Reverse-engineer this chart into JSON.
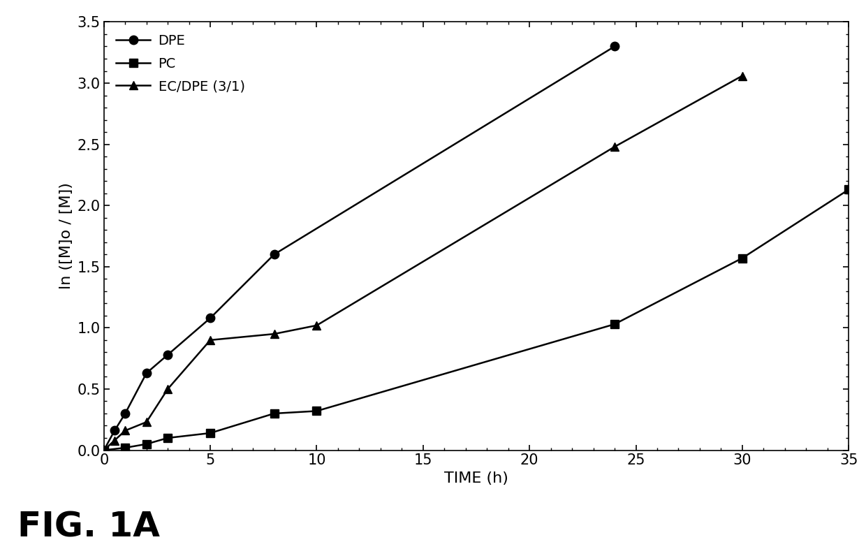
{
  "xlabel": "TIME (h)",
  "ylabel": "ln ([M]o / [M])",
  "xlim": [
    0,
    35
  ],
  "ylim": [
    0,
    3.5
  ],
  "xticks": [
    0,
    5,
    10,
    15,
    20,
    25,
    30,
    35
  ],
  "yticks": [
    0,
    0.5,
    1.0,
    1.5,
    2.0,
    2.5,
    3.0,
    3.5
  ],
  "series": [
    {
      "label": "DPE",
      "x": [
        0,
        0.5,
        1.0,
        2.0,
        3.0,
        5.0,
        8.0,
        24.0
      ],
      "y": [
        0.0,
        0.16,
        0.3,
        0.63,
        0.78,
        1.08,
        1.6,
        3.3
      ],
      "marker": "o",
      "markersize": 9,
      "color": "#000000",
      "linewidth": 1.8
    },
    {
      "label": "PC",
      "x": [
        0,
        1.0,
        2.0,
        3.0,
        5.0,
        8.0,
        10.0,
        24.0,
        30.0,
        35.0
      ],
      "y": [
        0.0,
        0.02,
        0.05,
        0.1,
        0.14,
        0.3,
        0.32,
        1.03,
        1.57,
        2.13
      ],
      "marker": "s",
      "markersize": 8,
      "color": "#000000",
      "linewidth": 1.8
    },
    {
      "label": "EC/DPE (3/1)",
      "x": [
        0,
        0.5,
        1.0,
        2.0,
        3.0,
        5.0,
        8.0,
        10.0,
        24.0,
        30.0
      ],
      "y": [
        0.0,
        0.08,
        0.16,
        0.23,
        0.5,
        0.9,
        0.95,
        1.02,
        2.48,
        3.06
      ],
      "marker": "^",
      "markersize": 8,
      "color": "#000000",
      "linewidth": 1.8
    }
  ],
  "background_color": "#ffffff",
  "fig_label": "FIG. 1A",
  "fig_label_fontsize": 36
}
